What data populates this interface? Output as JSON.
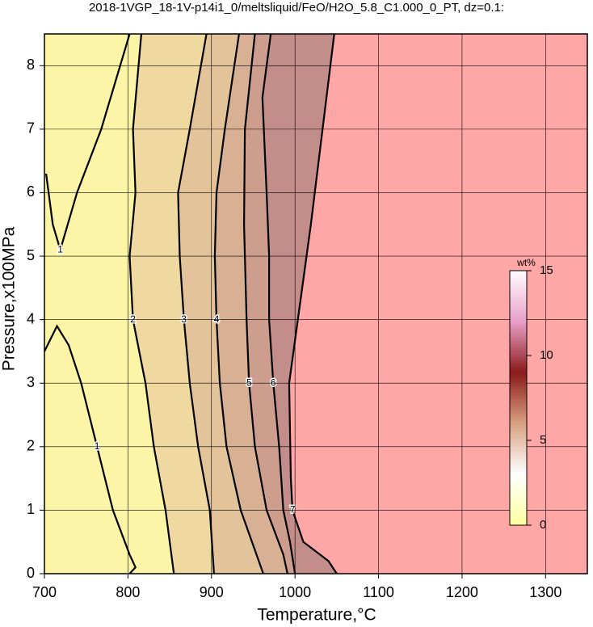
{
  "chart_data": {
    "type": "contour",
    "title": "2018-1VGP_18-1V-p14i1_0/meltsliquid/FeO/H2O_5.8_C1.000_0_PT, dz=0.1:",
    "x_label": "Temperature,°C",
    "y_label": "Pressure,x100MPa",
    "xlim": [
      700,
      1350
    ],
    "ylim": [
      0,
      8.5
    ],
    "xticks": [
      700,
      800,
      900,
      1000,
      1100,
      1200,
      1300
    ],
    "yticks": [
      0,
      1,
      2,
      3,
      4,
      5,
      6,
      7,
      8
    ],
    "grid": true,
    "background": "#fcf4a6",
    "series": [
      {
        "name": "1",
        "fill": null,
        "x": [
          802,
          768,
          739,
          719,
          710,
          702
        ],
        "y": [
          8.5,
          7,
          6,
          5.1,
          5.5,
          6.3
        ]
      },
      {
        "name": "1",
        "fill": null,
        "x": [
          700,
          715,
          729,
          744,
          763,
          782,
          802,
          809,
          802
        ],
        "y": [
          3.5,
          3.9,
          3.6,
          3,
          2,
          1,
          0.3,
          0.1,
          0
        ]
      },
      {
        "name": "2",
        "fill": "#efd9a0",
        "x": [
          816,
          806,
          809,
          802,
          806,
          821,
          831,
          845,
          855
        ],
        "y": [
          8.5,
          7,
          6,
          5,
          4,
          3,
          2,
          1,
          0
        ]
      },
      {
        "name": "3",
        "fill": "#e3c39a",
        "x": [
          894,
          874,
          860,
          862,
          867,
          874,
          884,
          898,
          903
        ],
        "y": [
          8.5,
          7,
          6,
          5,
          4,
          3,
          2,
          1,
          0
        ]
      },
      {
        "name": "4",
        "fill": "#d8b094",
        "x": [
          933,
          916,
          906,
          904,
          906,
          910,
          918,
          935,
          962
        ],
        "y": [
          8.5,
          7,
          6,
          5,
          4,
          3,
          2,
          1,
          0
        ]
      },
      {
        "name": "5",
        "fill": "#cd9e8e",
        "x": [
          952,
          940,
          939,
          942,
          945,
          952,
          966,
          986,
          991
        ],
        "y": [
          8.5,
          7,
          5.5,
          4,
          3,
          2,
          1,
          0.3,
          0
        ]
      },
      {
        "name": "6",
        "fill": "#c38d89",
        "x": [
          971,
          961,
          966,
          969,
          969,
          974,
          981,
          986,
          994,
          1000
        ],
        "y": [
          8.5,
          7.5,
          6,
          5,
          4,
          3,
          2,
          1,
          0.5,
          0
        ]
      },
      {
        "name": "7",
        "fill": "#ffa6a6",
        "x": [
          1047,
          1019,
          993,
          995,
          997,
          1010,
          1040,
          1050
        ],
        "y": [
          8.5,
          5.5,
          3,
          1.5,
          1,
          0.5,
          0.2,
          0
        ]
      }
    ],
    "colorbar": {
      "label": "wt%",
      "lim": [
        0,
        15
      ],
      "ticks": [
        0,
        5,
        10,
        15
      ],
      "colors": [
        "#ffffa0",
        "#ffffff",
        "#d8a080",
        "#8b1a1a",
        "#e8a0c8",
        "#ffffff"
      ]
    }
  }
}
